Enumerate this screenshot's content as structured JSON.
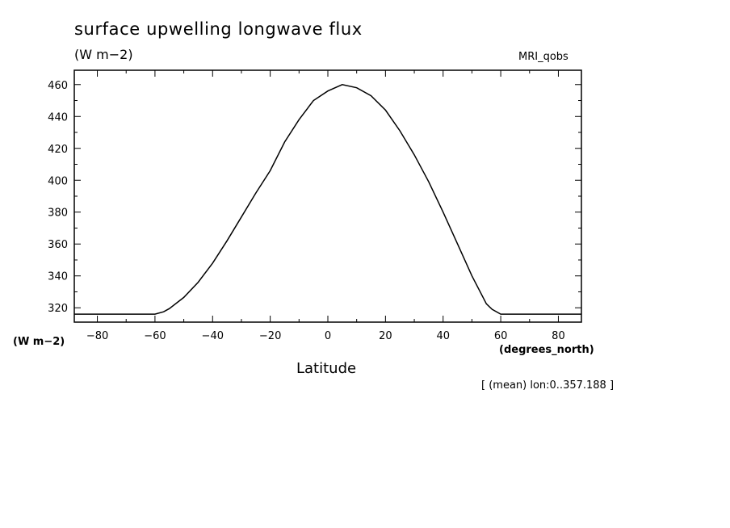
{
  "title": "surface upwelling longwave flux",
  "units_top": "(W m−2)",
  "model": "MRI_qobs",
  "units_left": "(W m−2)",
  "x_units": "(degrees_north)",
  "note": "[ (mean) lon:0..357.188 ]",
  "chart_data": {
    "type": "line",
    "xlabel": "Latitude",
    "ylabel": "",
    "xlim": [
      -88,
      88
    ],
    "ylim": [
      311,
      469
    ],
    "xticks": [
      -80,
      -60,
      -40,
      -20,
      0,
      20,
      40,
      60,
      80
    ],
    "xtick_labels": [
      "−80",
      "−60",
      "−40",
      "−20",
      "0",
      "20",
      "40",
      "60",
      "80"
    ],
    "yticks": [
      320,
      340,
      360,
      380,
      400,
      420,
      440,
      460
    ],
    "ytick_labels": [
      "320",
      "340",
      "360",
      "380",
      "400",
      "420",
      "440",
      "460"
    ],
    "grid": false,
    "series": [
      {
        "x": [
          -88,
          -80,
          -70,
          -60,
          -57,
          -55,
          -50,
          -45,
          -40,
          -35,
          -30,
          -25,
          -20,
          -15,
          -10,
          -5,
          0,
          5,
          10,
          15,
          20,
          25,
          30,
          35,
          40,
          45,
          50,
          55,
          57,
          60,
          70,
          80,
          88
        ],
        "y": [
          316,
          316,
          316,
          316,
          317.5,
          319.5,
          326.5,
          336,
          348,
          362,
          377,
          392,
          406,
          424,
          438,
          450,
          456,
          460,
          458,
          453,
          444,
          431,
          416,
          399,
          380,
          360,
          340,
          322.5,
          319,
          316,
          316,
          316,
          316
        ]
      }
    ]
  }
}
